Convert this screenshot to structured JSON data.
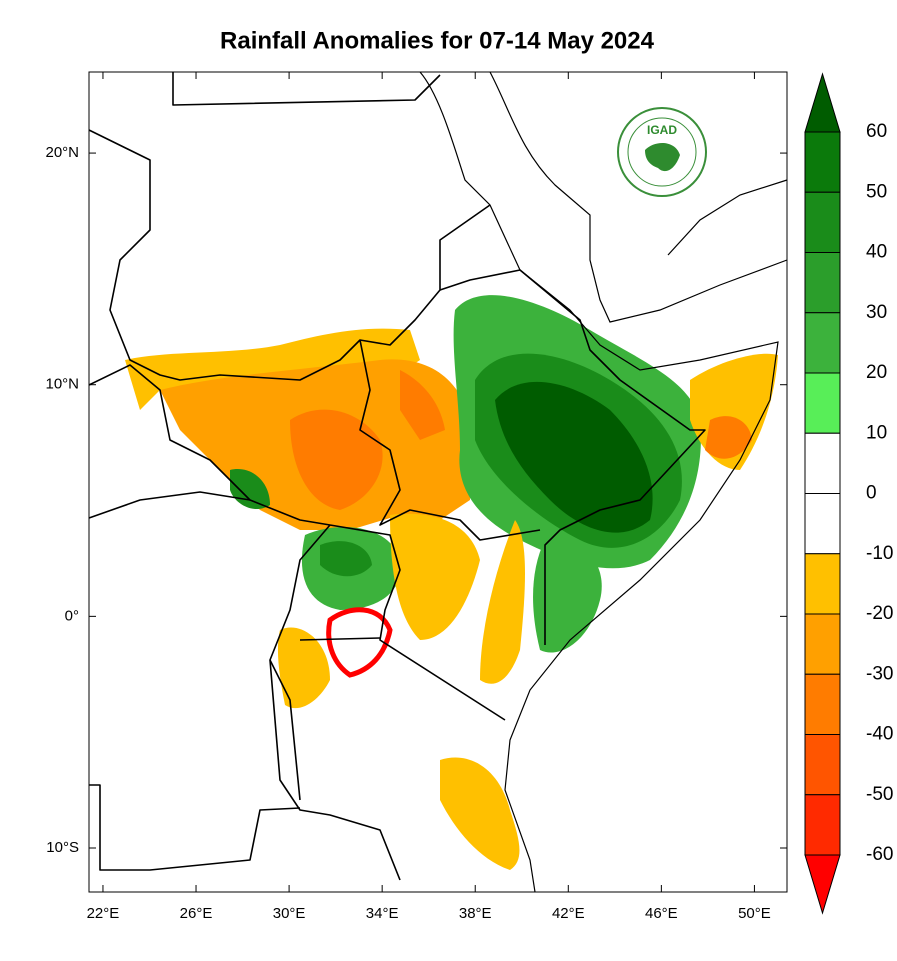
{
  "chart_data": {
    "type": "map",
    "title": "Rainfall Anomalies for 07-14 May 2024",
    "logo": "IGAD",
    "xlim": [
      21.4,
      51.4
    ],
    "ylim": [
      -11.9,
      23.5
    ],
    "xticks": [
      {
        "value": 22,
        "label": "22°E"
      },
      {
        "value": 26,
        "label": "26°E"
      },
      {
        "value": 30,
        "label": "30°E"
      },
      {
        "value": 34,
        "label": "34°E"
      },
      {
        "value": 38,
        "label": "38°E"
      },
      {
        "value": 42,
        "label": "42°E"
      },
      {
        "value": 46,
        "label": "46°E"
      },
      {
        "value": 50,
        "label": "50°E"
      }
    ],
    "yticks": [
      {
        "value": 20,
        "label": "20°N"
      },
      {
        "value": 10,
        "label": "10°N"
      },
      {
        "value": 0,
        "label": "0°"
      },
      {
        "value": -10,
        "label": "10°S"
      }
    ],
    "colorbar": {
      "levels": [
        60,
        50,
        40,
        30,
        20,
        10,
        0,
        -10,
        -20,
        -30,
        -40,
        -50,
        -60
      ],
      "colors": [
        "#005c00",
        "#0b7a0b",
        "#1a8c1a",
        "#2b9e2b",
        "#3cb23c",
        "#58ee58",
        "#ffffff",
        "#ffffff",
        "#ffc000",
        "#ffa000",
        "#ff7c00",
        "#ff5500",
        "#ff2a00",
        "#ff0000"
      ]
    }
  }
}
